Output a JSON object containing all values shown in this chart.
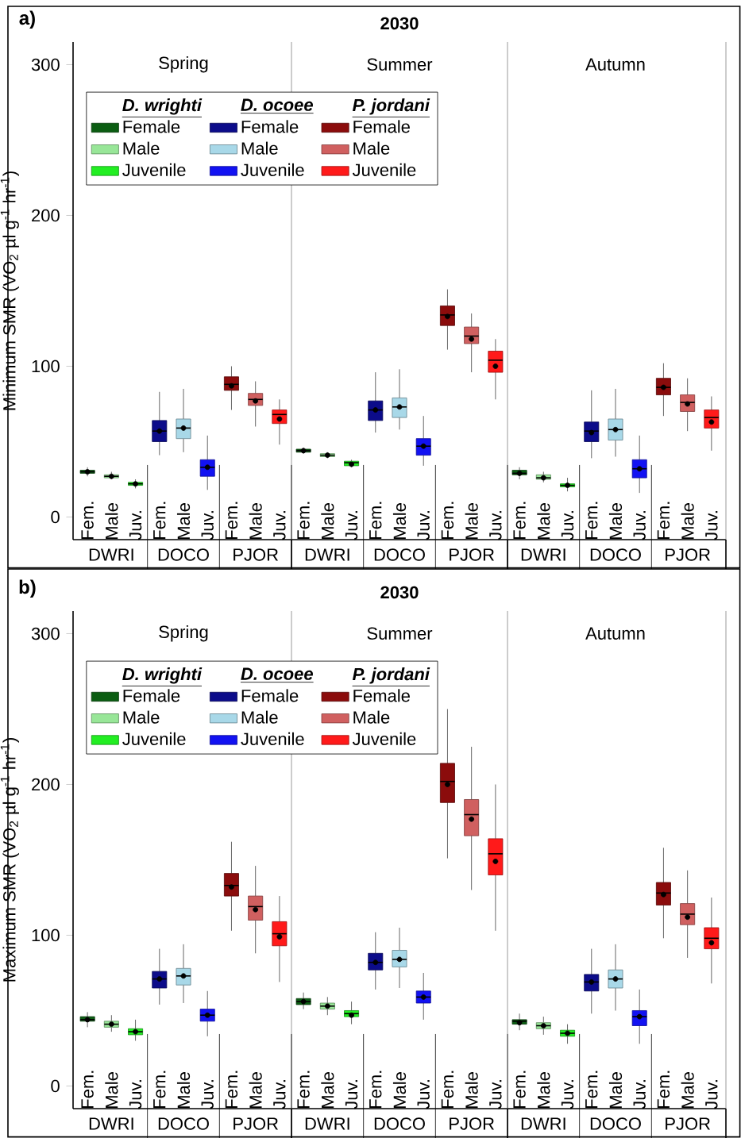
{
  "chart_data": [
    {
      "type": "box",
      "title": "2030",
      "ylabel": "Minimum SMR (VO$_{2}$ µl g$^{-1}$ hr$^{-1}$)",
      "categories": [
        "Fem.",
        "Male",
        "Juv.",
        "Fem.",
        "Male",
        "Juv.",
        "Fem.",
        "Male",
        "Juv.",
        "Fem.",
        "Male",
        "Juv.",
        "Fem.",
        "Male",
        "Juv.",
        "Fem.",
        "Male",
        "Juv.",
        "Fem.",
        "Male",
        "Juv.",
        "Fem.",
        "Male",
        "Juv.",
        "Fem.",
        "Male",
        "Juv."
      ],
      "ylim": [
        -15,
        315
      ],
      "yticks": [
        0,
        100,
        200,
        300
      ],
      "legend": "top left",
      "annotations": [
        "a)",
        "Spring",
        "Summer",
        "Autumn",
        "DWRI",
        "DOCO",
        "PJOR",
        "DWRI",
        "DOCO",
        "PJOR",
        "DWRI",
        "DOCO",
        "PJOR",
        "D. wrighti",
        "D. ocoee",
        "P. jordani"
      ],
      "series": [
        {
          "name": "Female",
          "color": "#0b5d12",
          "boxes": [
            {
              "low": 27,
              "q1": 29,
              "median": 30,
              "q3": 31,
              "high": 33,
              "mean": 30
            },
            null,
            null,
            null,
            null,
            null,
            null,
            null,
            null,
            {
              "low": 42,
              "q1": 43,
              "median": 44,
              "q3": 45,
              "high": 46,
              "mean": 44
            },
            null,
            null,
            null,
            null,
            null,
            null,
            null,
            null,
            {
              "low": 25,
              "q1": 28,
              "median": 29,
              "q3": 31,
              "high": 33,
              "mean": 29
            },
            null,
            null,
            null,
            null,
            null,
            null,
            null,
            null
          ]
        },
        {
          "name": "Male",
          "color": "#98e698",
          "boxes": [
            null,
            {
              "low": 25,
              "q1": 26,
              "median": 27,
              "q3": 28,
              "high": 30,
              "mean": 27
            },
            null,
            null,
            null,
            null,
            null,
            null,
            null,
            null,
            {
              "low": 39,
              "q1": 40,
              "median": 41,
              "q3": 42,
              "high": 43,
              "mean": 41
            },
            null,
            null,
            null,
            null,
            null,
            null,
            null,
            null,
            {
              "low": 23,
              "q1": 25,
              "median": 26,
              "q3": 28,
              "high": 30,
              "mean": 26
            },
            null,
            null,
            null,
            null,
            null,
            null,
            null
          ]
        },
        {
          "name": "Juvenile",
          "color": "#22ee22",
          "boxes": [
            null,
            null,
            {
              "low": 19,
              "q1": 21,
              "median": 22,
              "q3": 23,
              "high": 25,
              "mean": 22
            },
            null,
            null,
            null,
            null,
            null,
            null,
            null,
            null,
            {
              "low": 33,
              "q1": 34,
              "median": 36,
              "q3": 37,
              "high": 38,
              "mean": 35
            },
            null,
            null,
            null,
            null,
            null,
            null,
            null,
            null,
            {
              "low": 17,
              "q1": 20,
              "median": 21,
              "q3": 22,
              "high": 26,
              "mean": 21
            },
            null,
            null,
            null,
            null,
            null,
            null
          ]
        },
        {
          "name": "Female",
          "color": "#0c0c8a",
          "boxes": [
            null,
            null,
            null,
            {
              "low": 41,
              "q1": 50,
              "median": 57,
              "q3": 64,
              "high": 83,
              "mean": 57
            },
            null,
            null,
            null,
            null,
            null,
            null,
            null,
            null,
            {
              "low": 56,
              "q1": 64,
              "median": 71,
              "q3": 77,
              "high": 96,
              "mean": 71
            },
            null,
            null,
            null,
            null,
            null,
            null,
            null,
            null,
            {
              "low": 39,
              "q1": 50,
              "median": 57,
              "q3": 63,
              "high": 84,
              "mean": 56
            },
            null,
            null,
            null,
            null,
            null
          ]
        },
        {
          "name": "Male",
          "color": "#a8d8e8",
          "boxes": [
            null,
            null,
            null,
            null,
            {
              "low": 43,
              "q1": 52,
              "median": 59,
              "q3": 65,
              "high": 85,
              "mean": 59
            },
            null,
            null,
            null,
            null,
            null,
            null,
            null,
            null,
            {
              "low": 58,
              "q1": 66,
              "median": 73,
              "q3": 79,
              "high": 98,
              "mean": 73
            },
            null,
            null,
            null,
            null,
            null,
            null,
            null,
            null,
            {
              "low": 40,
              "q1": 51,
              "median": 58,
              "q3": 65,
              "high": 85,
              "mean": 58
            },
            null,
            null,
            null,
            null
          ]
        },
        {
          "name": "Juvenile",
          "color": "#1212f2",
          "boxes": [
            null,
            null,
            null,
            null,
            null,
            {
              "low": 18,
              "q1": 27,
              "median": 33,
              "q3": 38,
              "high": 54,
              "mean": 33
            },
            null,
            null,
            null,
            null,
            null,
            null,
            null,
            null,
            {
              "low": 34,
              "q1": 41,
              "median": 47,
              "q3": 52,
              "high": 67,
              "mean": 47
            },
            null,
            null,
            null,
            null,
            null,
            null,
            null,
            null,
            {
              "low": 16,
              "q1": 26,
              "median": 32,
              "q3": 38,
              "high": 54,
              "mean": 32
            },
            null,
            null,
            null
          ]
        },
        {
          "name": "Female",
          "color": "#8b0c0c",
          "boxes": [
            null,
            null,
            null,
            null,
            null,
            null,
            {
              "low": 71,
              "q1": 84,
              "median": 88,
              "q3": 93,
              "high": 100,
              "mean": 87
            },
            null,
            null,
            null,
            null,
            null,
            null,
            null,
            null,
            {
              "low": 111,
              "q1": 127,
              "median": 134,
              "q3": 140,
              "high": 151,
              "mean": 133
            },
            null,
            null,
            null,
            null,
            null,
            null,
            null,
            null,
            {
              "low": 67,
              "q1": 81,
              "median": 86,
              "q3": 92,
              "high": 102,
              "mean": 86
            },
            null,
            null
          ]
        },
        {
          "name": "Male",
          "color": "#d06060",
          "boxes": [
            null,
            null,
            null,
            null,
            null,
            null,
            null,
            {
              "low": 60,
              "q1": 74,
              "median": 78,
              "q3": 82,
              "high": 90,
              "mean": 77
            },
            null,
            null,
            null,
            null,
            null,
            null,
            null,
            null,
            {
              "low": 96,
              "q1": 115,
              "median": 120,
              "q3": 126,
              "high": 135,
              "mean": 118
            },
            null,
            null,
            null,
            null,
            null,
            null,
            null,
            null,
            {
              "low": 57,
              "q1": 70,
              "median": 76,
              "q3": 81,
              "high": 92,
              "mean": 75
            },
            null
          ]
        },
        {
          "name": "Juvenile",
          "color": "#ff1a1a",
          "boxes": [
            null,
            null,
            null,
            null,
            null,
            null,
            null,
            null,
            {
              "low": 48,
              "q1": 62,
              "median": 68,
              "q3": 71,
              "high": 78,
              "mean": 65
            },
            null,
            null,
            null,
            null,
            null,
            null,
            null,
            null,
            {
              "low": 78,
              "q1": 96,
              "median": 104,
              "q3": 110,
              "high": 118,
              "mean": 100
            },
            null,
            null,
            null,
            null,
            null,
            null,
            null,
            null,
            {
              "low": 44,
              "q1": 59,
              "median": 66,
              "q3": 71,
              "high": 80,
              "mean": 63
            }
          ]
        }
      ]
    },
    {
      "type": "box",
      "title": "2030",
      "ylabel": "Maximum SMR (VO$_{2}$ µl g$^{-1}$ hr$^{-1}$)",
      "categories": [
        "Fem.",
        "Male",
        "Juv.",
        "Fem.",
        "Male",
        "Juv.",
        "Fem.",
        "Male",
        "Juv.",
        "Fem.",
        "Male",
        "Juv.",
        "Fem.",
        "Male",
        "Juv.",
        "Fem.",
        "Male",
        "Juv.",
        "Fem.",
        "Male",
        "Juv.",
        "Fem.",
        "Male",
        "Juv.",
        "Fem.",
        "Male",
        "Juv."
      ],
      "ylim": [
        -15,
        315
      ],
      "yticks": [
        0,
        100,
        200,
        300
      ],
      "legend": "top left",
      "annotations": [
        "b)",
        "Spring",
        "Summer",
        "Autumn",
        "DWRI",
        "DOCO",
        "PJOR",
        "DWRI",
        "DOCO",
        "PJOR",
        "DWRI",
        "DOCO",
        "PJOR",
        "D. wrighti",
        "D. ocoee",
        "P. jordani"
      ],
      "series": [
        {
          "name": "Female",
          "color": "#0b5d12",
          "boxes": [
            {
              "low": 39,
              "q1": 43,
              "median": 44,
              "q3": 46,
              "high": 49,
              "mean": 44
            },
            null,
            null,
            null,
            null,
            null,
            null,
            null,
            null,
            {
              "low": 51,
              "q1": 54,
              "median": 56,
              "q3": 58,
              "high": 62,
              "mean": 56
            },
            null,
            null,
            null,
            null,
            null,
            null,
            null,
            null,
            {
              "low": 37,
              "q1": 41,
              "median": 43,
              "q3": 44,
              "high": 48,
              "mean": 42
            },
            null,
            null,
            null,
            null,
            null,
            null,
            null,
            null
          ]
        },
        {
          "name": "Male",
          "color": "#98e698",
          "boxes": [
            null,
            {
              "low": 36,
              "q1": 39,
              "median": 41,
              "q3": 43,
              "high": 47,
              "mean": 41
            },
            null,
            null,
            null,
            null,
            null,
            null,
            null,
            null,
            {
              "low": 47,
              "q1": 51,
              "median": 53,
              "q3": 55,
              "high": 59,
              "mean": 53
            },
            null,
            null,
            null,
            null,
            null,
            null,
            null,
            null,
            {
              "low": 34,
              "q1": 38,
              "median": 40,
              "q3": 42,
              "high": 46,
              "mean": 40
            },
            null,
            null,
            null,
            null,
            null,
            null,
            null
          ]
        },
        {
          "name": "Juvenile",
          "color": "#22ee22",
          "boxes": [
            null,
            null,
            {
              "low": 30,
              "q1": 34,
              "median": 36,
              "q3": 38,
              "high": 44,
              "mean": 36
            },
            null,
            null,
            null,
            null,
            null,
            null,
            null,
            null,
            {
              "low": 41,
              "q1": 46,
              "median": 48,
              "q3": 50,
              "high": 56,
              "mean": 47
            },
            null,
            null,
            null,
            null,
            null,
            null,
            null,
            null,
            {
              "low": 28,
              "q1": 33,
              "median": 35,
              "q3": 37,
              "high": 41,
              "mean": 35
            },
            null,
            null,
            null,
            null,
            null,
            null
          ]
        },
        {
          "name": "Female",
          "color": "#0c0c8a",
          "boxes": [
            null,
            null,
            null,
            {
              "low": 54,
              "q1": 65,
              "median": 71,
              "q3": 76,
              "high": 91,
              "mean": 71
            },
            null,
            null,
            null,
            null,
            null,
            null,
            null,
            null,
            {
              "low": 64,
              "q1": 77,
              "median": 82,
              "q3": 88,
              "high": 102,
              "mean": 82
            },
            null,
            null,
            null,
            null,
            null,
            null,
            null,
            null,
            {
              "low": 48,
              "q1": 63,
              "median": 69,
              "q3": 74,
              "high": 91,
              "mean": 69
            },
            null,
            null,
            null,
            null,
            null
          ]
        },
        {
          "name": "Male",
          "color": "#a8d8e8",
          "boxes": [
            null,
            null,
            null,
            null,
            {
              "low": 55,
              "q1": 67,
              "median": 73,
              "q3": 78,
              "high": 94,
              "mean": 73
            },
            null,
            null,
            null,
            null,
            null,
            null,
            null,
            null,
            {
              "low": 65,
              "q1": 79,
              "median": 84,
              "q3": 90,
              "high": 105,
              "mean": 84
            },
            null,
            null,
            null,
            null,
            null,
            null,
            null,
            null,
            {
              "low": 50,
              "q1": 65,
              "median": 71,
              "q3": 77,
              "high": 94,
              "mean": 71
            },
            null,
            null,
            null,
            null
          ]
        },
        {
          "name": "Juvenile",
          "color": "#1212f2",
          "boxes": [
            null,
            null,
            null,
            null,
            null,
            {
              "low": 33,
              "q1": 43,
              "median": 47,
              "q3": 51,
              "high": 63,
              "mean": 47
            },
            null,
            null,
            null,
            null,
            null,
            null,
            null,
            null,
            {
              "low": 44,
              "q1": 55,
              "median": 59,
              "q3": 63,
              "high": 75,
              "mean": 59
            },
            null,
            null,
            null,
            null,
            null,
            null,
            null,
            null,
            {
              "low": 28,
              "q1": 40,
              "median": 46,
              "q3": 50,
              "high": 64,
              "mean": 46
            },
            null,
            null,
            null
          ]
        },
        {
          "name": "Female",
          "color": "#8b0c0c",
          "boxes": [
            null,
            null,
            null,
            null,
            null,
            null,
            {
              "low": 103,
              "q1": 126,
              "median": 133,
              "q3": 141,
              "high": 162,
              "mean": 132
            },
            null,
            null,
            null,
            null,
            null,
            null,
            null,
            null,
            {
              "low": 151,
              "q1": 188,
              "median": 202,
              "q3": 214,
              "high": 250,
              "mean": 200
            },
            null,
            null,
            null,
            null,
            null,
            null,
            null,
            null,
            {
              "low": 98,
              "q1": 120,
              "median": 128,
              "q3": 135,
              "high": 158,
              "mean": 127
            },
            null,
            null
          ]
        },
        {
          "name": "Male",
          "color": "#d06060",
          "boxes": [
            null,
            null,
            null,
            null,
            null,
            null,
            null,
            {
              "low": 88,
              "q1": 110,
              "median": 119,
              "q3": 126,
              "high": 146,
              "mean": 117
            },
            null,
            null,
            null,
            null,
            null,
            null,
            null,
            null,
            {
              "low": 130,
              "q1": 166,
              "median": 180,
              "q3": 190,
              "high": 225,
              "mean": 177
            },
            null,
            null,
            null,
            null,
            null,
            null,
            null,
            null,
            {
              "low": 85,
              "q1": 107,
              "median": 114,
              "q3": 121,
              "high": 143,
              "mean": 112
            },
            null
          ]
        },
        {
          "name": "Juvenile",
          "color": "#ff1a1a",
          "boxes": [
            null,
            null,
            null,
            null,
            null,
            null,
            null,
            null,
            {
              "low": 69,
              "q1": 93,
              "median": 101,
              "q3": 109,
              "high": 126,
              "mean": 99
            },
            null,
            null,
            null,
            null,
            null,
            null,
            null,
            null,
            {
              "low": 103,
              "q1": 140,
              "median": 154,
              "q3": 164,
              "high": 200,
              "mean": 149
            },
            null,
            null,
            null,
            null,
            null,
            null,
            null,
            null,
            {
              "low": 68,
              "q1": 91,
              "median": 98,
              "q3": 105,
              "high": 125,
              "mean": 95
            }
          ]
        }
      ]
    }
  ]
}
